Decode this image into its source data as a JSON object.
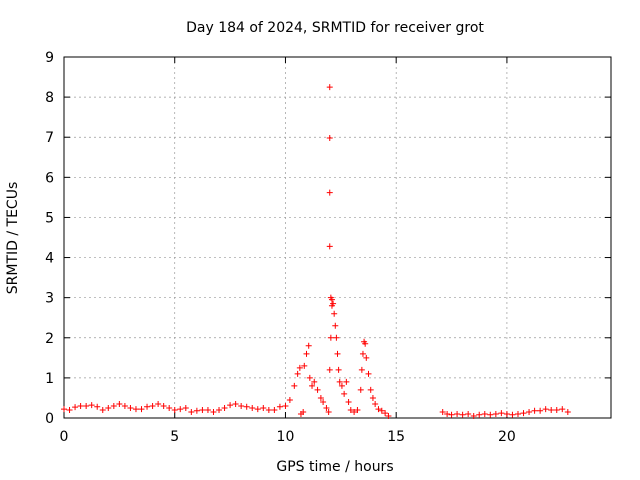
{
  "chart_data": {
    "type": "scatter",
    "title": "Day 184 of 2024, SRMTID for receiver grot",
    "xlabel": "GPS time / hours",
    "ylabel": "SRMTID / TECUs",
    "xlim": [
      0,
      24.7
    ],
    "ylim": [
      0,
      9
    ],
    "xticks": [
      "0",
      "5",
      "10",
      "15",
      "20"
    ],
    "xtick_values": [
      0,
      5,
      10,
      15,
      20
    ],
    "yticks": [
      "0",
      "1",
      "2",
      "3",
      "4",
      "5",
      "6",
      "7",
      "8",
      "9"
    ],
    "ytick_values": [
      0,
      1,
      2,
      3,
      4,
      5,
      6,
      7,
      8,
      9
    ],
    "grid": true,
    "marker": "+",
    "color": "#ff0000",
    "series": [
      {
        "name": "SRMTID",
        "points": [
          [
            0.0,
            0.22
          ],
          [
            0.25,
            0.2
          ],
          [
            0.5,
            0.27
          ],
          [
            0.75,
            0.3
          ],
          [
            1.0,
            0.3
          ],
          [
            1.25,
            0.32
          ],
          [
            1.5,
            0.28
          ],
          [
            1.75,
            0.2
          ],
          [
            2.0,
            0.25
          ],
          [
            2.25,
            0.3
          ],
          [
            2.5,
            0.35
          ],
          [
            2.75,
            0.3
          ],
          [
            3.0,
            0.25
          ],
          [
            3.25,
            0.22
          ],
          [
            3.5,
            0.22
          ],
          [
            3.75,
            0.28
          ],
          [
            4.0,
            0.3
          ],
          [
            4.25,
            0.35
          ],
          [
            4.5,
            0.3
          ],
          [
            4.75,
            0.25
          ],
          [
            5.0,
            0.2
          ],
          [
            5.25,
            0.22
          ],
          [
            5.5,
            0.25
          ],
          [
            5.75,
            0.15
          ],
          [
            6.0,
            0.18
          ],
          [
            6.25,
            0.2
          ],
          [
            6.5,
            0.2
          ],
          [
            6.75,
            0.15
          ],
          [
            7.0,
            0.2
          ],
          [
            7.25,
            0.25
          ],
          [
            7.5,
            0.32
          ],
          [
            7.75,
            0.35
          ],
          [
            8.0,
            0.3
          ],
          [
            8.25,
            0.28
          ],
          [
            8.5,
            0.25
          ],
          [
            8.75,
            0.22
          ],
          [
            9.0,
            0.25
          ],
          [
            9.25,
            0.2
          ],
          [
            9.5,
            0.2
          ],
          [
            9.75,
            0.28
          ],
          [
            10.0,
            0.3
          ],
          [
            10.2,
            0.45
          ],
          [
            10.4,
            0.8
          ],
          [
            10.55,
            1.1
          ],
          [
            10.65,
            1.25
          ],
          [
            10.7,
            0.1
          ],
          [
            10.8,
            0.15
          ],
          [
            10.85,
            1.3
          ],
          [
            10.95,
            1.6
          ],
          [
            11.05,
            1.8
          ],
          [
            11.1,
            1.0
          ],
          [
            11.2,
            0.8
          ],
          [
            11.3,
            0.9
          ],
          [
            11.45,
            0.7
          ],
          [
            11.6,
            0.5
          ],
          [
            11.7,
            0.4
          ],
          [
            11.85,
            0.25
          ],
          [
            11.95,
            0.15
          ],
          [
            12.0,
            1.2
          ],
          [
            12.05,
            2.0
          ],
          [
            12.1,
            2.8
          ],
          [
            12.15,
            2.85
          ],
          [
            12.2,
            2.6
          ],
          [
            12.25,
            2.3
          ],
          [
            12.3,
            2.0
          ],
          [
            12.35,
            1.6
          ],
          [
            12.4,
            1.2
          ],
          [
            12.45,
            0.9
          ],
          [
            12.55,
            0.8
          ],
          [
            12.65,
            0.6
          ],
          [
            12.75,
            0.9
          ],
          [
            12.85,
            0.4
          ],
          [
            12.95,
            0.2
          ],
          [
            13.1,
            0.15
          ],
          [
            13.25,
            0.2
          ],
          [
            13.4,
            0.7
          ],
          [
            13.45,
            1.2
          ],
          [
            13.5,
            1.6
          ],
          [
            13.55,
            1.9
          ],
          [
            13.6,
            1.85
          ],
          [
            13.65,
            1.5
          ],
          [
            13.75,
            1.1
          ],
          [
            13.85,
            0.7
          ],
          [
            13.95,
            0.5
          ],
          [
            14.05,
            0.35
          ],
          [
            14.2,
            0.22
          ],
          [
            14.35,
            0.18
          ],
          [
            14.5,
            0.12
          ],
          [
            14.65,
            0.05
          ],
          [
            12.0,
            8.25
          ],
          [
            12.0,
            6.98
          ],
          [
            12.0,
            5.62
          ],
          [
            12.0,
            4.28
          ],
          [
            12.05,
            3.0
          ],
          [
            12.1,
            2.95
          ],
          [
            17.1,
            0.15
          ],
          [
            17.3,
            0.1
          ],
          [
            17.5,
            0.08
          ],
          [
            17.75,
            0.1
          ],
          [
            18.0,
            0.08
          ],
          [
            18.25,
            0.1
          ],
          [
            18.5,
            0.05
          ],
          [
            18.75,
            0.08
          ],
          [
            19.0,
            0.1
          ],
          [
            19.25,
            0.08
          ],
          [
            19.5,
            0.1
          ],
          [
            19.75,
            0.12
          ],
          [
            20.0,
            0.1
          ],
          [
            20.25,
            0.08
          ],
          [
            20.5,
            0.1
          ],
          [
            20.75,
            0.12
          ],
          [
            21.0,
            0.15
          ],
          [
            21.25,
            0.18
          ],
          [
            21.5,
            0.18
          ],
          [
            21.75,
            0.22
          ],
          [
            22.0,
            0.2
          ],
          [
            22.25,
            0.2
          ],
          [
            22.5,
            0.22
          ],
          [
            22.75,
            0.15
          ]
        ]
      }
    ]
  }
}
